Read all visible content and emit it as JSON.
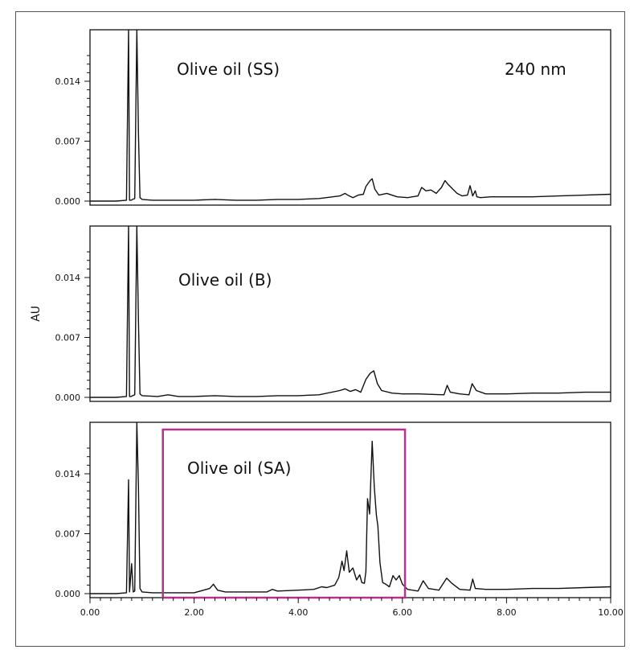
{
  "chart_data": {
    "type": "line",
    "ylabel": "AU",
    "xlabel": "",
    "xlim": [
      0,
      10
    ],
    "ylim": [
      0,
      0.0175
    ],
    "x_ticks": [
      "0.00",
      "2.00",
      "4.00",
      "6.00",
      "8.00",
      "10.00"
    ],
    "y_ticks": [
      "0.000",
      "0.007",
      "0.014"
    ],
    "wavelength_label": "240 nm",
    "highlight_box": {
      "x_range": [
        1.4,
        6.05
      ],
      "color": "#b5338a"
    },
    "panels": [
      {
        "title": "Olive oil (SS)",
        "series": [
          {
            "x": [
              0,
              0.5,
              0.7,
              0.74,
              0.76,
              0.79,
              0.82,
              0.86,
              0.9,
              0.93,
              0.96,
              1.0,
              1.2,
              1.6,
              2.0,
              2.4,
              2.8,
              3.2,
              3.6,
              4.0,
              4.4,
              4.8,
              4.9,
              4.95,
              5.05,
              5.15,
              5.25,
              5.3,
              5.38,
              5.42,
              5.47,
              5.55,
              5.7,
              5.9,
              6.1,
              6.3,
              6.37,
              6.45,
              6.55,
              6.65,
              6.75,
              6.82,
              6.87,
              6.95,
              7.05,
              7.15,
              7.25,
              7.3,
              7.35,
              7.4,
              7.43,
              7.5,
              7.7,
              8.0,
              8.5,
              9.0,
              9.5,
              10.0
            ],
            "y": [
              0,
              0,
              0.0001,
              0.02,
              0.0001,
              0.0001,
              0.0002,
              0.0003,
              0.02,
              0.008,
              0.0004,
              0.0002,
              0.0001,
              0.0001,
              0.0001,
              0.0002,
              0.0001,
              0.0001,
              0.0002,
              0.0002,
              0.0003,
              0.0006,
              0.0009,
              0.0007,
              0.0004,
              0.0007,
              0.0008,
              0.0017,
              0.0024,
              0.0026,
              0.0014,
              0.0007,
              0.0009,
              0.0005,
              0.0004,
              0.0006,
              0.0016,
              0.0012,
              0.0013,
              0.0009,
              0.0016,
              0.0024,
              0.002,
              0.0015,
              0.0009,
              0.0006,
              0.0007,
              0.0018,
              0.0006,
              0.0012,
              0.0005,
              0.0004,
              0.0005,
              0.0005,
              0.0005,
              0.0006,
              0.0007,
              0.0008
            ]
          }
        ]
      },
      {
        "title": "Olive oil (B)",
        "series": [
          {
            "x": [
              0,
              0.5,
              0.7,
              0.74,
              0.76,
              0.79,
              0.82,
              0.86,
              0.9,
              0.93,
              0.96,
              1.0,
              1.3,
              1.5,
              1.7,
              2.0,
              2.4,
              2.8,
              3.2,
              3.6,
              4.0,
              4.4,
              4.8,
              4.9,
              5.0,
              5.1,
              5.2,
              5.3,
              5.38,
              5.45,
              5.52,
              5.6,
              5.8,
              6.0,
              6.3,
              6.8,
              6.86,
              6.92,
              7.1,
              7.28,
              7.34,
              7.42,
              7.6,
              8.0,
              8.5,
              9.0,
              9.5,
              10.0
            ],
            "y": [
              0,
              0,
              0.0001,
              0.02,
              0.0001,
              0.0001,
              0.0002,
              0.0003,
              0.02,
              0.009,
              0.0004,
              0.0002,
              0.0001,
              0.0003,
              0.0001,
              0.0001,
              0.0002,
              0.0001,
              0.0001,
              0.0002,
              0.0002,
              0.0003,
              0.0008,
              0.001,
              0.0007,
              0.0009,
              0.0006,
              0.0021,
              0.0028,
              0.0031,
              0.0016,
              0.0008,
              0.0005,
              0.0004,
              0.0004,
              0.0003,
              0.0014,
              0.0006,
              0.0004,
              0.0003,
              0.0016,
              0.0008,
              0.0004,
              0.0004,
              0.0005,
              0.0005,
              0.0006,
              0.0006
            ]
          }
        ]
      },
      {
        "title": "Olive oil (SA)",
        "series": [
          {
            "x": [
              0,
              0.5,
              0.7,
              0.74,
              0.76,
              0.8,
              0.83,
              0.86,
              0.9,
              0.93,
              0.96,
              1.0,
              1.2,
              1.6,
              2.0,
              2.3,
              2.37,
              2.45,
              2.6,
              3.0,
              3.4,
              3.5,
              3.6,
              4.0,
              4.3,
              4.45,
              4.55,
              4.7,
              4.78,
              4.84,
              4.88,
              4.93,
              4.98,
              5.05,
              5.12,
              5.18,
              5.22,
              5.27,
              5.3,
              5.33,
              5.37,
              5.42,
              5.46,
              5.5,
              5.53,
              5.57,
              5.62,
              5.68,
              5.75,
              5.82,
              5.88,
              5.94,
              6.0,
              6.1,
              6.3,
              6.4,
              6.5,
              6.7,
              6.85,
              6.95,
              7.1,
              7.3,
              7.35,
              7.4,
              7.6,
              8.0,
              8.5,
              9.0,
              9.5,
              10.0
            ],
            "y": [
              0,
              0,
              0.0001,
              0.0133,
              0.0002,
              0.0035,
              0.0002,
              0.0003,
              0.02,
              0.0125,
              0.0006,
              0.0002,
              0.0001,
              0.0001,
              0.0001,
              0.0006,
              0.0011,
              0.0004,
              0.0002,
              0.0002,
              0.0002,
              0.0005,
              0.0003,
              0.0004,
              0.0005,
              0.0008,
              0.0007,
              0.001,
              0.0019,
              0.0038,
              0.0027,
              0.005,
              0.0025,
              0.003,
              0.0016,
              0.0022,
              0.0013,
              0.0012,
              0.0026,
              0.0111,
              0.0093,
              0.0178,
              0.0125,
              0.0092,
              0.0079,
              0.0036,
              0.0013,
              0.0011,
              0.0008,
              0.0021,
              0.0016,
              0.0021,
              0.0011,
              0.0005,
              0.0003,
              0.0015,
              0.0006,
              0.0004,
              0.0018,
              0.0012,
              0.0005,
              0.0004,
              0.0017,
              0.0006,
              0.0005,
              0.0005,
              0.0006,
              0.0006,
              0.0007,
              0.0008
            ]
          }
        ]
      }
    ]
  }
}
